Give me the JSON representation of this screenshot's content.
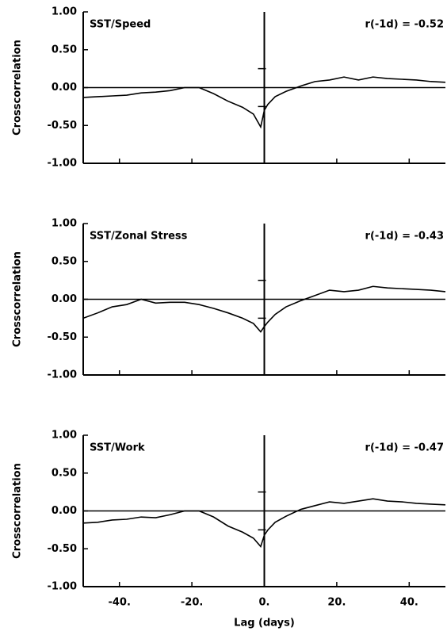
{
  "chart_data": [
    {
      "type": "line",
      "ylabel": "Crosscorrelation",
      "annotations": [
        "SST/Speed",
        "r(-1d) = -0.52"
      ],
      "x": [
        -50,
        -46,
        -42,
        -38,
        -34,
        -30,
        -26,
        -22,
        -18,
        -14,
        -10,
        -6,
        -3,
        -1,
        0,
        1,
        3,
        6,
        10,
        14,
        18,
        22,
        26,
        30,
        34,
        38,
        42,
        46,
        50
      ],
      "series": [
        {
          "color": "#000000",
          "values": [
            -0.13,
            -0.12,
            -0.11,
            -0.1,
            -0.07,
            -0.06,
            -0.04,
            0.0,
            0.0,
            -0.08,
            -0.18,
            -0.26,
            -0.35,
            -0.52,
            -0.3,
            -0.22,
            -0.12,
            -0.05,
            0.02,
            0.08,
            0.1,
            0.14,
            0.1,
            0.14,
            0.12,
            0.11,
            0.1,
            0.08,
            0.07
          ]
        }
      ],
      "xlim": [
        -50,
        50
      ],
      "xticks": [
        -40,
        -20,
        0,
        20,
        40
      ],
      "ylim": [
        -1,
        1
      ],
      "yticks": [
        {
          "value": 1,
          "label": "1.00"
        },
        {
          "value": 0.5,
          "label": "0.50"
        },
        {
          "value": 0,
          "label": "0.00"
        },
        {
          "value": -0.5,
          "label": "-0.50"
        },
        {
          "value": -1,
          "label": "-1.00"
        }
      ]
    },
    {
      "type": "line",
      "ylabel": "Crosscorrelation",
      "annotations": [
        "SST/Zonal Stress",
        "r(-1d) = -0.43"
      ],
      "x": [
        -50,
        -46,
        -42,
        -38,
        -34,
        -30,
        -26,
        -22,
        -18,
        -14,
        -10,
        -6,
        -3,
        -1,
        0,
        1,
        3,
        6,
        10,
        14,
        18,
        22,
        26,
        30,
        34,
        38,
        42,
        46,
        50
      ],
      "series": [
        {
          "color": "#000000",
          "values": [
            -0.25,
            -0.18,
            -0.1,
            -0.07,
            0.0,
            -0.05,
            -0.04,
            -0.04,
            -0.07,
            -0.12,
            -0.18,
            -0.25,
            -0.32,
            -0.43,
            -0.36,
            -0.3,
            -0.2,
            -0.1,
            -0.02,
            0.05,
            0.12,
            0.1,
            0.12,
            0.17,
            0.15,
            0.14,
            0.13,
            0.12,
            0.1
          ]
        }
      ],
      "xlim": [
        -50,
        50
      ],
      "xticks": [
        -40,
        -20,
        0,
        20,
        40
      ],
      "ylim": [
        -1,
        1
      ],
      "yticks": [
        {
          "value": 1,
          "label": "1.00"
        },
        {
          "value": 0.5,
          "label": "0.50"
        },
        {
          "value": 0,
          "label": "0.00"
        },
        {
          "value": -0.5,
          "label": "-0.50"
        },
        {
          "value": -1,
          "label": "-1.00"
        }
      ]
    },
    {
      "type": "line",
      "ylabel": "Crosscorrelation",
      "xlabel": "Lag (days)",
      "annotations": [
        "SST/Work",
        "r(-1d) = -0.47"
      ],
      "x": [
        -50,
        -46,
        -42,
        -38,
        -34,
        -30,
        -26,
        -22,
        -18,
        -14,
        -10,
        -6,
        -3,
        -1,
        0,
        1,
        3,
        6,
        10,
        14,
        18,
        22,
        26,
        30,
        34,
        38,
        42,
        46,
        50
      ],
      "series": [
        {
          "color": "#000000",
          "values": [
            -0.16,
            -0.15,
            -0.12,
            -0.11,
            -0.08,
            -0.09,
            -0.05,
            0.0,
            0.0,
            -0.08,
            -0.2,
            -0.28,
            -0.36,
            -0.47,
            -0.32,
            -0.25,
            -0.15,
            -0.07,
            0.02,
            0.07,
            0.12,
            0.1,
            0.13,
            0.16,
            0.13,
            0.12,
            0.1,
            0.09,
            0.08
          ]
        }
      ],
      "xlim": [
        -50,
        50
      ],
      "xticks": [
        {
          "value": -40,
          "label": "-40."
        },
        {
          "value": -20,
          "label": "-20."
        },
        {
          "value": 0,
          "label": "0."
        },
        {
          "value": 20,
          "label": "20."
        },
        {
          "value": 40,
          "label": "40."
        }
      ],
      "ylim": [
        -1,
        1
      ],
      "yticks": [
        {
          "value": 1,
          "label": "1.00"
        },
        {
          "value": 0.5,
          "label": "0.50"
        },
        {
          "value": 0,
          "label": "0.00"
        },
        {
          "value": -0.5,
          "label": "-0.50"
        },
        {
          "value": -1,
          "label": "-1.00"
        }
      ]
    }
  ]
}
